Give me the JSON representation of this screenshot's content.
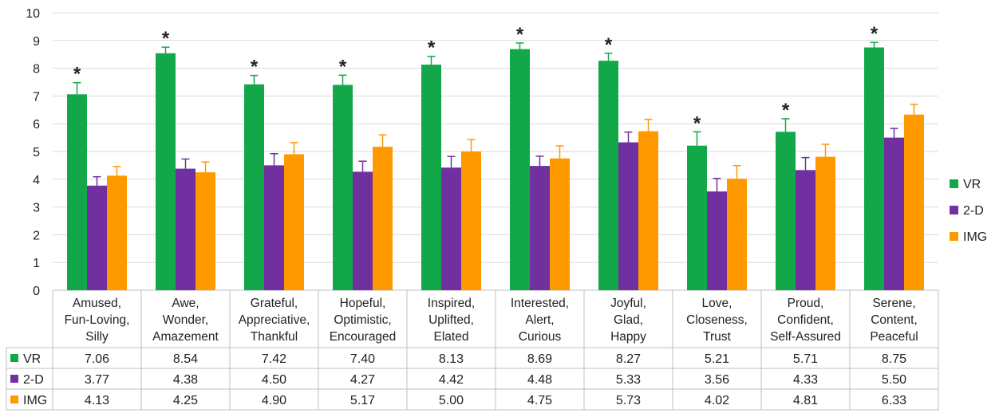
{
  "chart_data": {
    "type": "bar",
    "categories": [
      [
        "Amused,",
        "Fun-Loving,",
        "Silly"
      ],
      [
        "Awe,",
        "Wonder,",
        "Amazement"
      ],
      [
        "Grateful,",
        "Appreciative,",
        "Thankful"
      ],
      [
        "Hopeful,",
        "Optimistic,",
        "Encouraged"
      ],
      [
        "Inspired,",
        "Uplifted,",
        "Elated"
      ],
      [
        "Interested,",
        "Alert,",
        "Curious"
      ],
      [
        "Joyful,",
        "Glad,",
        "Happy"
      ],
      [
        "Love,",
        "Closeness,",
        "Trust"
      ],
      [
        "Proud,",
        "Confident,",
        "Self-Assured"
      ],
      [
        "Serene,",
        "Content,",
        "Peaceful"
      ]
    ],
    "series": [
      {
        "name": "VR",
        "color": "#12a84a",
        "values": [
          7.06,
          8.54,
          7.42,
          7.4,
          8.13,
          8.69,
          8.27,
          5.21,
          5.71,
          8.75
        ],
        "labels": [
          "7.06",
          "8.54",
          "7.42",
          "7.40",
          "8.13",
          "8.69",
          "8.27",
          "5.21",
          "5.71",
          "8.75"
        ],
        "errors": [
          0.42,
          0.22,
          0.32,
          0.35,
          0.3,
          0.22,
          0.27,
          0.5,
          0.47,
          0.18
        ]
      },
      {
        "name": "2-D",
        "color": "#7030a0",
        "values": [
          3.77,
          4.38,
          4.5,
          4.27,
          4.42,
          4.48,
          5.33,
          3.56,
          4.33,
          5.5
        ],
        "labels": [
          "3.77",
          "4.38",
          "4.50",
          "4.27",
          "4.42",
          "4.48",
          "5.33",
          "3.56",
          "4.33",
          "5.50"
        ],
        "errors": [
          0.32,
          0.35,
          0.42,
          0.38,
          0.4,
          0.35,
          0.37,
          0.47,
          0.45,
          0.33
        ]
      },
      {
        "name": "IMG",
        "color": "#ff9900",
        "values": [
          4.13,
          4.25,
          4.9,
          5.17,
          5.0,
          4.75,
          5.73,
          4.02,
          4.81,
          6.33
        ],
        "labels": [
          "4.13",
          "4.25",
          "4.90",
          "5.17",
          "5.00",
          "4.75",
          "5.73",
          "4.02",
          "4.81",
          "6.33"
        ],
        "errors": [
          0.33,
          0.37,
          0.42,
          0.43,
          0.43,
          0.45,
          0.43,
          0.47,
          0.45,
          0.37
        ]
      }
    ],
    "significance_marker": "*",
    "significant": [
      true,
      true,
      true,
      true,
      true,
      true,
      true,
      true,
      true,
      true
    ],
    "ylim": [
      0,
      10
    ],
    "yticks": [
      "0",
      "1",
      "2",
      "3",
      "4",
      "5",
      "6",
      "7",
      "8",
      "9",
      "10"
    ],
    "grid": true,
    "legend_position": "right",
    "data_table": true
  }
}
